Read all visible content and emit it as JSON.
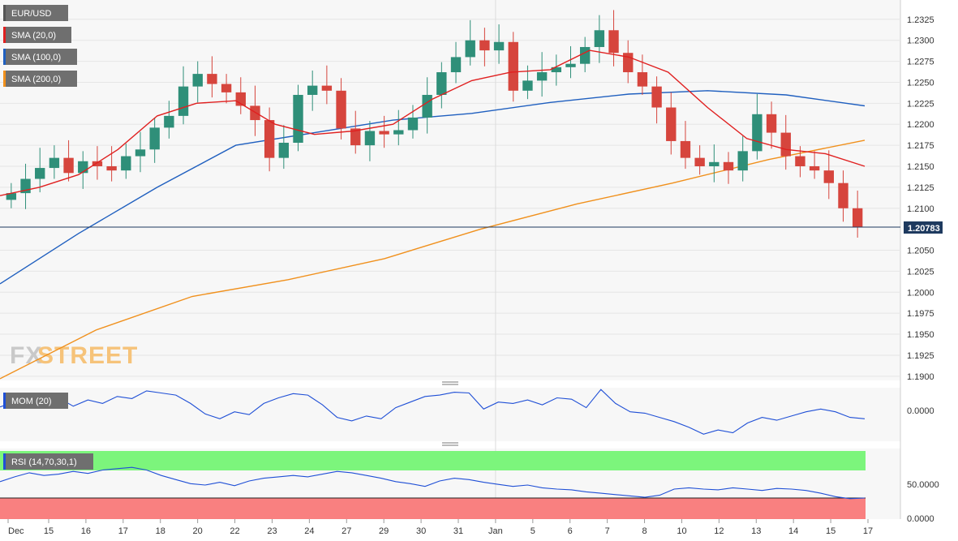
{
  "chart_data": [
    {
      "type": "candlestick",
      "symbol": "EUR/USD",
      "ylim": [
        1.1895,
        1.2348
      ],
      "yticks": [
        "1.2325",
        "1.2300",
        "1.2275",
        "1.2250",
        "1.2225",
        "1.2200",
        "1.2175",
        "1.2150",
        "1.2125",
        "1.2100",
        "1.2050",
        "1.2025",
        "1.2000",
        "1.1975",
        "1.1950",
        "1.1925",
        "1.1900"
      ],
      "last_price": "1.20783",
      "x_labels": [
        "Dec",
        "15",
        "16",
        "17",
        "18",
        "20",
        "22",
        "23",
        "24",
        "27",
        "29",
        "30",
        "31",
        "Jan",
        "5",
        "6",
        "7",
        "8",
        "10",
        "12",
        "13",
        "14",
        "15",
        "17"
      ],
      "indicators": [
        {
          "name": "SMA (20,0)",
          "color": "#e02020"
        },
        {
          "name": "SMA (100,0)",
          "color": "#1f5fbf"
        },
        {
          "name": "SMA (200,0)",
          "color": "#f0901c"
        }
      ],
      "ohlc_close_path": [
        1.2118,
        1.2135,
        1.2148,
        1.216,
        1.2142,
        1.2156,
        1.215,
        1.2145,
        1.2162,
        1.217,
        1.2196,
        1.221,
        1.2245,
        1.226,
        1.2248,
        1.2238,
        1.2222,
        1.2205,
        1.216,
        1.2178,
        1.2235,
        1.2246,
        1.224,
        1.2195,
        1.2175,
        1.2192,
        1.2188,
        1.2193,
        1.2208,
        1.2235,
        1.2262,
        1.228,
        1.23,
        1.2288,
        1.2298,
        1.224,
        1.2252,
        1.2262,
        1.2268,
        1.2272,
        1.2292,
        1.2312,
        1.2285,
        1.2262,
        1.2245,
        1.222,
        1.218,
        1.216,
        1.215,
        1.2155,
        1.2145,
        1.2168,
        1.2212,
        1.219,
        1.2162,
        1.215,
        1.2145,
        1.213,
        1.21,
        1.2078
      ],
      "sma20_approx": [
        1.2115,
        1.2125,
        1.214,
        1.217,
        1.221,
        1.2225,
        1.2228,
        1.22,
        1.2188,
        1.2192,
        1.22,
        1.223,
        1.2252,
        1.2262,
        1.2265,
        1.2288,
        1.228,
        1.2262,
        1.222,
        1.2183,
        1.217,
        1.2165,
        1.215
      ],
      "sma100_approx": [
        1.201,
        1.207,
        1.2125,
        1.2175,
        1.219,
        1.2205,
        1.2213,
        1.2226,
        1.2236,
        1.224,
        1.2235,
        1.2222
      ],
      "sma200_approx": [
        1.1897,
        1.1955,
        1.1995,
        1.2015,
        1.204,
        1.2075,
        1.2105,
        1.213,
        1.2158,
        1.2181
      ]
    },
    {
      "type": "line",
      "name": "MOM (20)",
      "color": "#1f4fd6",
      "ytick": "0.0000",
      "values": [
        0.0005,
        0.0012,
        0.0003,
        0.0008,
        0.0018,
        0.0006,
        0.0015,
        0.001,
        0.002,
        0.0017,
        0.0028,
        0.0025,
        0.0022,
        0.001,
        -0.0005,
        -0.0012,
        -0.0002,
        -0.0006,
        0.001,
        0.0018,
        0.0024,
        0.0022,
        0.0008,
        -0.001,
        -0.0015,
        -0.0008,
        -0.0012,
        0.0004,
        0.0012,
        0.002,
        0.0022,
        0.0026,
        0.0025,
        0.0002,
        0.0012,
        0.001,
        0.0015,
        0.0008,
        0.0018,
        0.0016,
        0.0004,
        0.003,
        0.001,
        -0.0002,
        -0.0004,
        -0.001,
        -0.0016,
        -0.0024,
        -0.0034,
        -0.0028,
        -0.0032,
        -0.0018,
        -0.001,
        -0.0014,
        -0.0008,
        -0.0002,
        0.0002,
        -0.0002,
        -0.001,
        -0.0012
      ]
    },
    {
      "type": "line",
      "name": "RSI (14,70,30,1)",
      "color": "#1f4fd6",
      "yticks": [
        "50.0000",
        "0.0000"
      ],
      "overbought_color": "#7cf57c",
      "oversold_color": "#f98080",
      "values": [
        55,
        62,
        68,
        64,
        66,
        70,
        67,
        72,
        74,
        76,
        72,
        64,
        58,
        52,
        50,
        54,
        49,
        56,
        60,
        62,
        64,
        62,
        66,
        70,
        68,
        64,
        60,
        55,
        52,
        48,
        56,
        60,
        58,
        54,
        51,
        48,
        50,
        46,
        44,
        43,
        40,
        38,
        36,
        34,
        32,
        35,
        44,
        46,
        44,
        43,
        46,
        44,
        42,
        45,
        44,
        42,
        38,
        33,
        30,
        31
      ]
    }
  ],
  "legend": {
    "symbol_label": "EUR/USD",
    "sma20_label": "SMA (20,0)",
    "sma100_label": "SMA (100,0)",
    "sma200_label": "SMA (200,0)",
    "mom_label": "MOM (20)",
    "rsi_label": "RSI (14,70,30,1)",
    "price_tag": "1.20783"
  },
  "watermark": {
    "text_fx": "FX",
    "text_street": "STREET"
  }
}
